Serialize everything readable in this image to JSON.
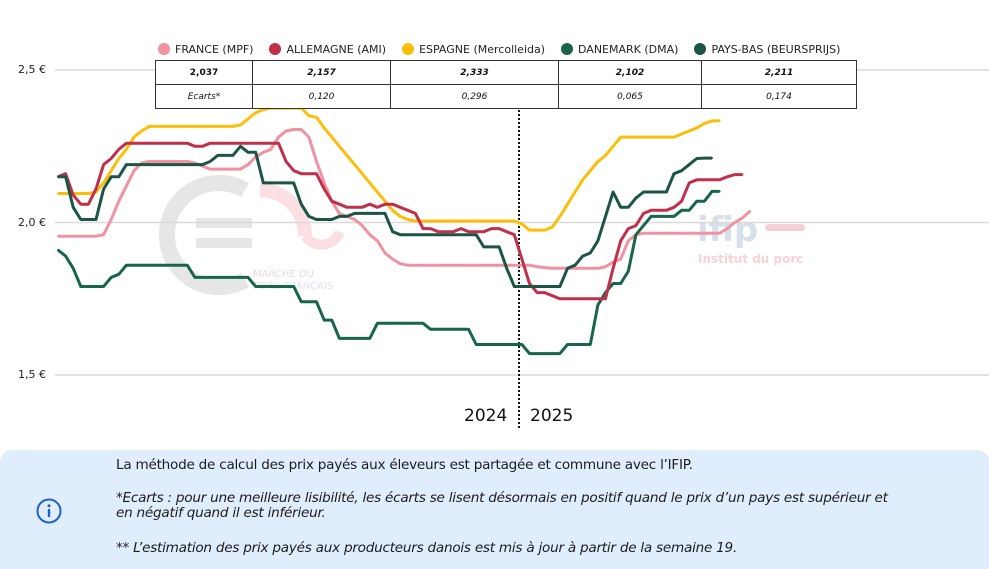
{
  "chart_data": {
    "type": "line",
    "title": "",
    "xlabel": "",
    "ylabel": "",
    "ylim": [
      1.5,
      2.5
    ],
    "y_ticks": [
      "2,5 €",
      "2,0 €",
      "1,5 €"
    ],
    "y_tick_values": [
      2.5,
      2.0,
      1.5
    ],
    "grid": true,
    "year_labels": [
      "2024",
      "2025"
    ],
    "year_split_week_index": 45,
    "legend_position": "top",
    "series": [
      {
        "name": "FRANCE (MPF)",
        "color": "#f0929f",
        "values": [
          1.955,
          1.955,
          1.955,
          1.955,
          1.955,
          1.955,
          1.96,
          2.01,
          2.07,
          2.12,
          2.17,
          2.195,
          2.2,
          2.2,
          2.2,
          2.2,
          2.2,
          2.2,
          2.195,
          2.185,
          2.175,
          2.175,
          2.175,
          2.175,
          2.175,
          2.19,
          2.215,
          2.23,
          2.24,
          2.28,
          2.3,
          2.305,
          2.305,
          2.28,
          2.2,
          2.13,
          2.07,
          2.03,
          2.02,
          2.01,
          1.99,
          1.96,
          1.94,
          1.9,
          1.88,
          1.865,
          1.86,
          1.86,
          1.86,
          1.86,
          1.86,
          1.86,
          1.86,
          1.86,
          1.86,
          1.86,
          1.86,
          1.86,
          1.86,
          1.86,
          1.86,
          1.86,
          1.86,
          1.855,
          1.852,
          1.85,
          1.85,
          1.85,
          1.85,
          1.85,
          1.85,
          1.85,
          1.855,
          1.87,
          1.88,
          1.94,
          1.96,
          1.965,
          1.965,
          1.965,
          1.965,
          1.965,
          1.965,
          1.965,
          1.965,
          1.965,
          1.965,
          1.965,
          1.98,
          2.0,
          2.015,
          2.037
        ]
      },
      {
        "name": "ALLEMAGNE (AMI)",
        "color": "#c0304a",
        "values": [
          2.15,
          2.16,
          2.09,
          2.06,
          2.06,
          2.11,
          2.19,
          2.21,
          2.24,
          2.26,
          2.26,
          2.26,
          2.26,
          2.26,
          2.26,
          2.26,
          2.26,
          2.26,
          2.25,
          2.25,
          2.26,
          2.26,
          2.26,
          2.26,
          2.26,
          2.26,
          2.26,
          2.26,
          2.26,
          2.26,
          2.2,
          2.17,
          2.16,
          2.16,
          2.16,
          2.11,
          2.07,
          2.06,
          2.05,
          2.05,
          2.05,
          2.06,
          2.05,
          2.06,
          2.06,
          2.05,
          2.04,
          2.03,
          1.98,
          1.98,
          1.97,
          1.97,
          1.97,
          1.98,
          1.97,
          1.97,
          1.97,
          1.98,
          1.98,
          1.97,
          1.96,
          1.88,
          1.8,
          1.77,
          1.77,
          1.76,
          1.75,
          1.75,
          1.75,
          1.75,
          1.75,
          1.75,
          1.75,
          1.85,
          1.94,
          1.98,
          1.99,
          2.03,
          2.04,
          2.04,
          2.04,
          2.05,
          2.07,
          2.13,
          2.14,
          2.14,
          2.14,
          2.14,
          2.15,
          2.157,
          2.157
        ]
      },
      {
        "name": "ESPAGNE (Mercolleida)",
        "color": "#fbbf0a",
        "values": [
          2.095,
          2.095,
          2.095,
          2.095,
          2.095,
          2.1,
          2.13,
          2.17,
          2.21,
          2.24,
          2.28,
          2.3,
          2.315,
          2.315,
          2.315,
          2.315,
          2.315,
          2.315,
          2.315,
          2.315,
          2.315,
          2.315,
          2.315,
          2.315,
          2.32,
          2.34,
          2.36,
          2.37,
          2.375,
          2.375,
          2.375,
          2.375,
          2.375,
          2.35,
          2.345,
          2.31,
          2.28,
          2.25,
          2.22,
          2.19,
          2.16,
          2.13,
          2.1,
          2.07,
          2.04,
          2.02,
          2.01,
          2.005,
          2.005,
          2.005,
          2.005,
          2.005,
          2.005,
          2.005,
          2.005,
          2.005,
          2.005,
          2.005,
          2.005,
          2.005,
          2.005,
          1.995,
          1.975,
          1.975,
          1.975,
          1.985,
          2.02,
          2.06,
          2.1,
          2.14,
          2.17,
          2.2,
          2.22,
          2.25,
          2.28,
          2.28,
          2.28,
          2.28,
          2.28,
          2.28,
          2.28,
          2.28,
          2.29,
          2.3,
          2.31,
          2.325,
          2.333,
          2.333
        ]
      },
      {
        "name": "DANEMARK (DMA)",
        "color": "#17664a",
        "values": [
          1.91,
          1.89,
          1.85,
          1.79,
          1.79,
          1.79,
          1.79,
          1.82,
          1.83,
          1.86,
          1.86,
          1.86,
          1.86,
          1.86,
          1.86,
          1.86,
          1.86,
          1.86,
          1.82,
          1.82,
          1.82,
          1.82,
          1.82,
          1.82,
          1.82,
          1.82,
          1.79,
          1.79,
          1.79,
          1.79,
          1.79,
          1.79,
          1.74,
          1.74,
          1.74,
          1.68,
          1.68,
          1.62,
          1.62,
          1.62,
          1.62,
          1.62,
          1.67,
          1.67,
          1.67,
          1.67,
          1.67,
          1.67,
          1.67,
          1.65,
          1.65,
          1.65,
          1.65,
          1.65,
          1.65,
          1.6,
          1.6,
          1.6,
          1.6,
          1.6,
          1.6,
          1.6,
          1.57,
          1.57,
          1.57,
          1.57,
          1.57,
          1.6,
          1.6,
          1.6,
          1.6,
          1.73,
          1.77,
          1.8,
          1.8,
          1.84,
          1.96,
          1.99,
          2.02,
          2.02,
          2.02,
          2.02,
          2.04,
          2.04,
          2.07,
          2.07,
          2.102,
          2.102
        ]
      },
      {
        "name": "PAYS-BAS (BEURSPRIJS)",
        "color": "#1c5446",
        "values": [
          2.15,
          2.15,
          2.05,
          2.01,
          2.01,
          2.01,
          2.11,
          2.15,
          2.15,
          2.19,
          2.19,
          2.19,
          2.19,
          2.19,
          2.19,
          2.19,
          2.19,
          2.19,
          2.19,
          2.19,
          2.2,
          2.22,
          2.22,
          2.22,
          2.25,
          2.23,
          2.23,
          2.13,
          2.13,
          2.13,
          2.13,
          2.13,
          2.06,
          2.02,
          2.01,
          2.01,
          2.01,
          2.02,
          2.02,
          2.03,
          2.03,
          2.03,
          2.03,
          2.03,
          1.97,
          1.96,
          1.96,
          1.96,
          1.96,
          1.96,
          1.96,
          1.96,
          1.96,
          1.96,
          1.96,
          1.96,
          1.92,
          1.92,
          1.92,
          1.85,
          1.79,
          1.79,
          1.79,
          1.79,
          1.79,
          1.79,
          1.79,
          1.85,
          1.86,
          1.89,
          1.9,
          1.94,
          2.02,
          2.1,
          2.05,
          2.05,
          2.08,
          2.1,
          2.1,
          2.1,
          2.1,
          2.16,
          2.17,
          2.19,
          2.21,
          2.211,
          2.211
        ]
      }
    ]
  },
  "legend": [
    {
      "label": "FRANCE (MPF)",
      "color": "#f0929f"
    },
    {
      "label": "ALLEMAGNE (AMI)",
      "color": "#c0304a"
    },
    {
      "label": "ESPAGNE (Mercolleida)",
      "color": "#fbbf0a"
    },
    {
      "label": "DANEMARK (DMA)",
      "color": "#17664a"
    },
    {
      "label": "PAYS-BAS (BEURSPRIJS)",
      "color": "#1c5446"
    }
  ],
  "table": {
    "prices": [
      "2,037",
      "2,157",
      "2,333",
      "2,102",
      "2,211"
    ],
    "ecarts_label": "Ecarts*",
    "ecarts": [
      "0,120",
      "0,296",
      "0,065",
      "0,174"
    ]
  },
  "watermarks": {
    "mpf": "MARCHÉ DU PORC FRANÇAIS",
    "mpf_line1": "MARCHÉ DU",
    "mpf_line2": "PORC FRANÇAIS",
    "ifip": "ifip",
    "ifip_sub": "Institut du porc"
  },
  "info": {
    "icon": "info-icon",
    "line1": "La méthode de calcul des prix payés aux éleveurs est partagée et commune avec l’IFIP.",
    "line2a": "*Ecarts : pour une meilleure lisibilité, les écarts se lisent désormais en positif quand le prix d’un pays est supérieur et",
    "line2b": "en négatif quand il est inférieur.",
    "line3": "** L’estimation des prix payés aux producteurs danois est mis à jour à partir de la semaine 19."
  }
}
